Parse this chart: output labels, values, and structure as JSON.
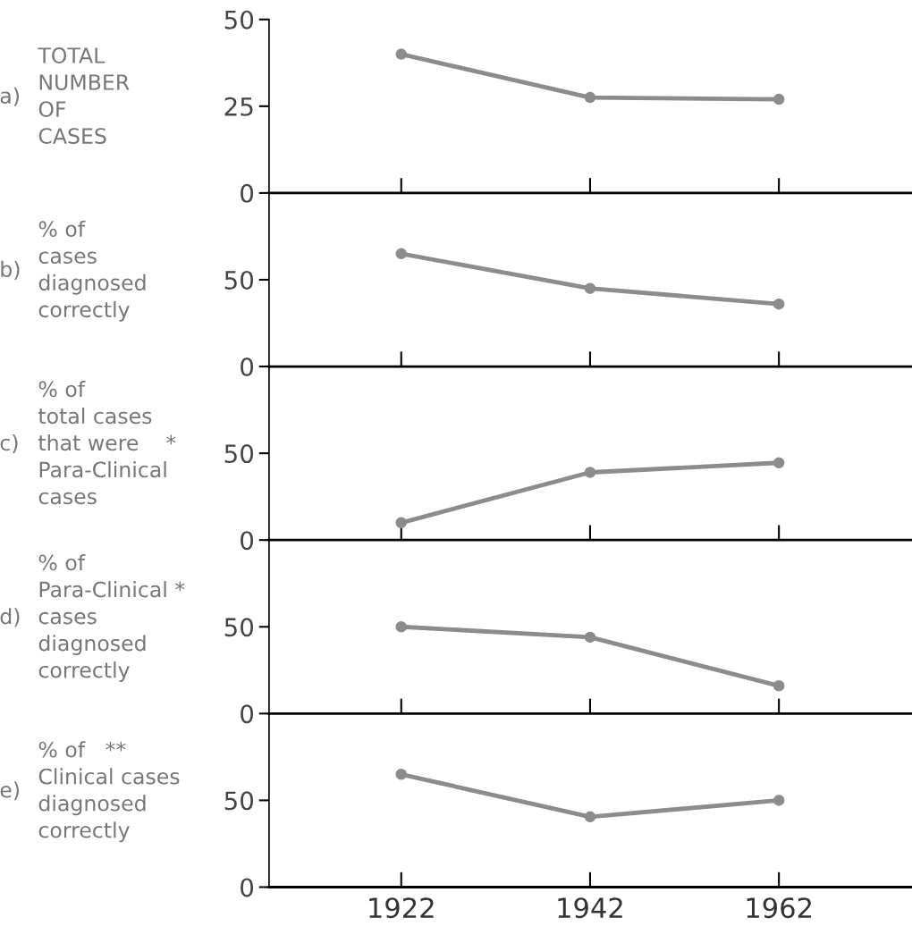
{
  "chart_data": [
    {
      "type": "line",
      "x": [
        1922,
        1942,
        1962
      ],
      "values": [
        40,
        27.5,
        27
      ],
      "color": "#8c8c8c",
      "marker": "circle",
      "line_style": "solid",
      "xlim": [
        1908,
        1976
      ],
      "xticks": [
        1922,
        1942,
        1962
      ],
      "ylim": [
        0,
        50
      ],
      "yticks": [
        0,
        25,
        50
      ],
      "tick_labels": "y",
      "ylabel": "TOTAL\nNUMBER\nOF\nCASES",
      "annotations": [
        "a)"
      ]
    },
    {
      "type": "line",
      "x": [
        1922,
        1942,
        1962
      ],
      "values": [
        65,
        45,
        36
      ],
      "color": "#8c8c8c",
      "marker": "circle",
      "line_style": "solid",
      "xlim": [
        1908,
        1976
      ],
      "xticks": [
        1922,
        1942,
        1962
      ],
      "ylim": [
        0,
        100
      ],
      "yticks": [
        0,
        50
      ],
      "tick_labels": "y",
      "ylabel": "% of\ncases\ndiagnosed\ncorrectly",
      "annotations": [
        "b)"
      ]
    },
    {
      "type": "line",
      "x": [
        1922,
        1942,
        1962
      ],
      "values": [
        10,
        39,
        44.5
      ],
      "color": "#8c8c8c",
      "marker": "circle",
      "line_style": "solid",
      "xlim": [
        1908,
        1976
      ],
      "xticks": [
        1922,
        1942,
        1962
      ],
      "ylim": [
        0,
        100
      ],
      "yticks": [
        0,
        50
      ],
      "tick_labels": "y",
      "ylabel": "% of\ntotal cases\nthat were    *\nPara-Clinical\ncases",
      "annotations": [
        "c)"
      ]
    },
    {
      "type": "line",
      "x": [
        1922,
        1942,
        1962
      ],
      "values": [
        50,
        44,
        16
      ],
      "color": "#8c8c8c",
      "marker": "circle",
      "line_style": "solid",
      "xlim": [
        1908,
        1976
      ],
      "xticks": [
        1922,
        1942,
        1962
      ],
      "ylim": [
        0,
        100
      ],
      "yticks": [
        0,
        50
      ],
      "tick_labels": "y",
      "ylabel": "% of\nPara-Clinical *\ncases\ndiagnosed\ncorrectly",
      "annotations": [
        "d)"
      ]
    },
    {
      "type": "line",
      "x": [
        1922,
        1942,
        1962
      ],
      "values": [
        65,
        40.5,
        50
      ],
      "color": "#8c8c8c",
      "marker": "circle",
      "line_style": "solid",
      "xlim": [
        1908,
        1976
      ],
      "xticks": [
        1922,
        1942,
        1962
      ],
      "ylim": [
        0,
        100
      ],
      "yticks": [
        0,
        50
      ],
      "ylabel": "% of   **\nClinical cases\ndiagnosed\ncorrectly",
      "annotations": [
        "e)"
      ]
    }
  ]
}
